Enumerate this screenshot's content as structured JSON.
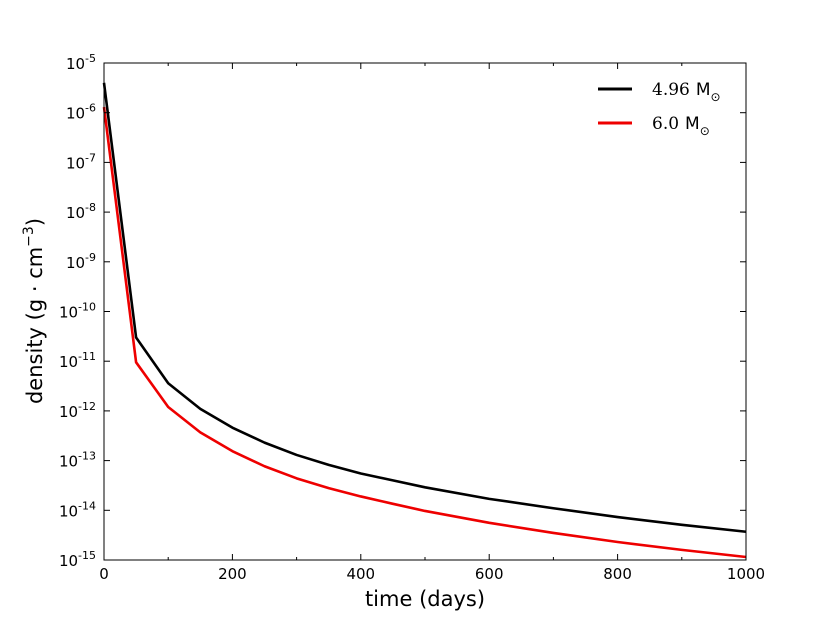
{
  "chart_data": {
    "type": "line",
    "xlabel": "time (days)",
    "ylabel": "density (g · cm",
    "ylabel_exponent": "−3",
    "ylabel_suffix": ")",
    "xlim": [
      0,
      1000
    ],
    "ylim": [
      1e-15,
      1e-05
    ],
    "yscale": "log",
    "grid": false,
    "legend_position": "top-right",
    "x_ticks": [
      {
        "value": 0,
        "label": "0"
      },
      {
        "value": 200,
        "label": "200"
      },
      {
        "value": 400,
        "label": "400"
      },
      {
        "value": 600,
        "label": "600"
      },
      {
        "value": 800,
        "label": "800"
      },
      {
        "value": 1000,
        "label": "1000"
      }
    ],
    "y_ticks": [
      {
        "value": 1e-15,
        "base": "10",
        "exp": "-15"
      },
      {
        "value": 1e-14,
        "base": "10",
        "exp": "-14"
      },
      {
        "value": 1e-13,
        "base": "10",
        "exp": "-13"
      },
      {
        "value": 1e-12,
        "base": "10",
        "exp": "-12"
      },
      {
        "value": 1e-11,
        "base": "10",
        "exp": "-11"
      },
      {
        "value": 1e-10,
        "base": "10",
        "exp": "-10"
      },
      {
        "value": 1e-09,
        "base": "10",
        "exp": "-9"
      },
      {
        "value": 1e-08,
        "base": "10",
        "exp": "-8"
      },
      {
        "value": 1e-07,
        "base": "10",
        "exp": "-7"
      },
      {
        "value": 1e-06,
        "base": "10",
        "exp": "-6"
      },
      {
        "value": 1e-05,
        "base": "10",
        "exp": "-5"
      }
    ],
    "series": [
      {
        "name": "4.96",
        "name_unit": "M",
        "name_sub": "⊙",
        "color": "#000000",
        "x": [
          0,
          50,
          100,
          150,
          200,
          250,
          300,
          350,
          400,
          450,
          500,
          600,
          700,
          800,
          900,
          1000
        ],
        "y": [
          4e-06,
          3e-11,
          3.6e-12,
          1.1e-12,
          4.6e-13,
          2.3e-13,
          1.3e-13,
          8.2e-14,
          5.5e-14,
          4e-14,
          2.9e-14,
          1.7e-14,
          1.1e-14,
          7.3e-15,
          5.1e-15,
          3.7e-15
        ]
      },
      {
        "name": "6.0",
        "name_unit": "M",
        "name_sub": "⊙",
        "color": "#ee0000",
        "x": [
          0,
          50,
          100,
          150,
          200,
          250,
          300,
          350,
          400,
          450,
          500,
          600,
          700,
          800,
          900,
          1000
        ],
        "y": [
          1.3e-06,
          9.5e-12,
          1.2e-12,
          3.7e-13,
          1.55e-13,
          7.7e-14,
          4.4e-14,
          2.8e-14,
          1.9e-14,
          1.35e-14,
          9.7e-15,
          5.6e-15,
          3.5e-15,
          2.3e-15,
          1.6e-15,
          1.15e-15
        ]
      }
    ]
  }
}
